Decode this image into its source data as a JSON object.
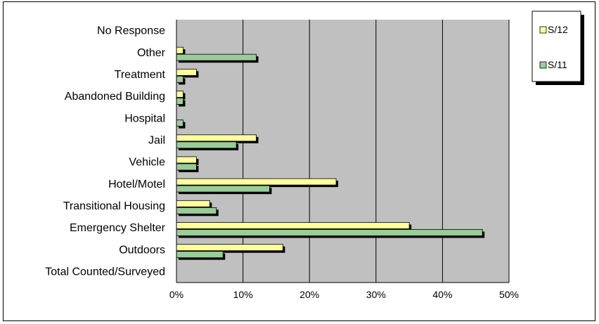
{
  "chart_data": {
    "type": "bar",
    "orientation": "horizontal",
    "categories": [
      "No Response",
      "Other",
      "Treatment",
      "Abandoned Building",
      "Hospital",
      "Jail",
      "Vehicle",
      "Hotel/Motel",
      "Transitional Housing",
      "Emergency Shelter",
      "Outdoors",
      "Total Counted/Surveyed"
    ],
    "series": [
      {
        "name": "S/12",
        "color": "#FFFF99",
        "values": [
          0,
          1,
          3,
          1,
          0,
          12,
          3,
          24,
          5,
          35,
          16,
          0
        ]
      },
      {
        "name": "S/11",
        "color": "#99CC99",
        "values": [
          0,
          12,
          1,
          1,
          1,
          9,
          3,
          14,
          6,
          46,
          7,
          0
        ]
      }
    ],
    "xlim": [
      0,
      50
    ],
    "x_ticks": [
      "0%",
      "10%",
      "20%",
      "30%",
      "40%",
      "50%"
    ],
    "grid": true,
    "plot_background": "#C0C0C0",
    "legend_position": "top-right",
    "title": "",
    "xlabel": "",
    "ylabel": ""
  }
}
